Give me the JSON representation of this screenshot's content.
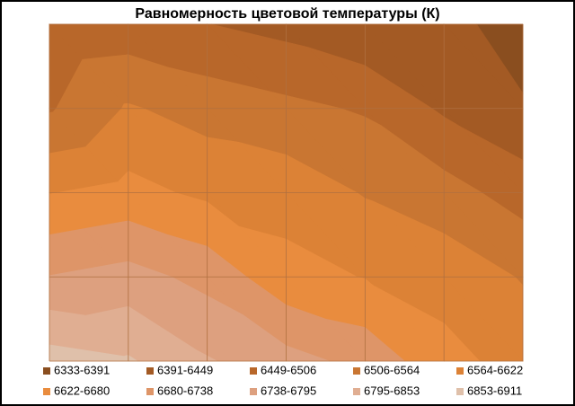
{
  "chart_data": {
    "type": "contour",
    "title": "Равномерность  цветовой температуры (К)",
    "levels": [
      6333,
      6391,
      6449,
      6506,
      6564,
      6622,
      6680,
      6738,
      6795,
      6853,
      6911
    ],
    "z": [
      [
        6460,
        6470,
        6450,
        6430,
        6400,
        6420,
        6350
      ],
      [
        6500,
        6570,
        6540,
        6520,
        6500,
        6440,
        6400
      ],
      [
        6620,
        6640,
        6610,
        6600,
        6560,
        6530,
        6480
      ],
      [
        6740,
        6760,
        6720,
        6640,
        6620,
        6600,
        6560
      ],
      [
        6880,
        6860,
        6800,
        6760,
        6720,
        6640,
        6600
      ]
    ],
    "series": [
      {
        "name": "6333-6391",
        "color": "#8a4e1f"
      },
      {
        "name": "6391-6449",
        "color": "#a35a24"
      },
      {
        "name": "6449-6506",
        "color": "#b8672a"
      },
      {
        "name": "6506-6564",
        "color": "#c97632"
      },
      {
        "name": "6564-6622",
        "color": "#dc8236"
      },
      {
        "name": "6622-6680",
        "color": "#e98c3e"
      },
      {
        "name": "6680-6738",
        "color": "#de9568"
      },
      {
        "name": "6738-6795",
        "color": "#dda07f"
      },
      {
        "name": "6795-6853",
        "color": "#e0ae92"
      },
      {
        "name": "6853-6911",
        "color": "#dfc0aa"
      }
    ]
  }
}
